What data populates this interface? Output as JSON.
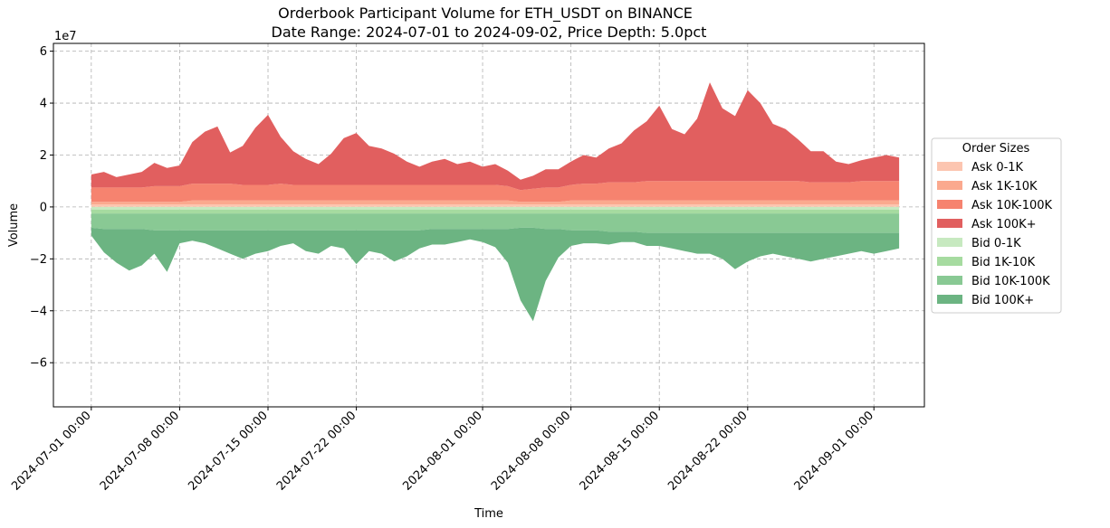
{
  "chart_data": {
    "type": "area",
    "title": "Orderbook Participant Volume for ETH_USDT on BINANCE",
    "subtitle": "Date Range: 2024-07-01 to 2024-09-02, Price Depth: 5.0pct",
    "xlabel": "Time",
    "ylabel": "Volume",
    "y_offset_label": "1e7",
    "x_start": "2024-07-01",
    "x_end": "2024-09-03",
    "x_range": [
      "2024-06-28",
      "2024-09-05"
    ],
    "ylim": [
      -7.7,
      6.3
    ],
    "y_scale_multiplier": 10000000,
    "yticks": [
      -6,
      -4,
      -2,
      0,
      2,
      4,
      6
    ],
    "xtick_dates": [
      "2024-07-01",
      "2024-07-08",
      "2024-07-15",
      "2024-07-22",
      "2024-08-01",
      "2024-08-08",
      "2024-08-15",
      "2024-08-22",
      "2024-09-01"
    ],
    "xtick_labels": [
      "2024-07-01 00:00",
      "2024-07-08 00:00",
      "2024-07-15 00:00",
      "2024-07-22 00:00",
      "2024-08-01 00:00",
      "2024-08-08 00:00",
      "2024-08-15 00:00",
      "2024-08-22 00:00",
      "2024-09-01 00:00"
    ],
    "grid": true,
    "legend_title": "Order Sizes",
    "legend_position": "center right, outside plot",
    "x": [
      "2024-07-01",
      "2024-07-02",
      "2024-07-03",
      "2024-07-04",
      "2024-07-05",
      "2024-07-06",
      "2024-07-07",
      "2024-07-08",
      "2024-07-09",
      "2024-07-10",
      "2024-07-11",
      "2024-07-12",
      "2024-07-13",
      "2024-07-14",
      "2024-07-15",
      "2024-07-16",
      "2024-07-17",
      "2024-07-18",
      "2024-07-19",
      "2024-07-20",
      "2024-07-21",
      "2024-07-22",
      "2024-07-23",
      "2024-07-24",
      "2024-07-25",
      "2024-07-26",
      "2024-07-27",
      "2024-07-28",
      "2024-07-29",
      "2024-07-30",
      "2024-07-31",
      "2024-08-01",
      "2024-08-02",
      "2024-08-03",
      "2024-08-04",
      "2024-08-05",
      "2024-08-06",
      "2024-08-07",
      "2024-08-08",
      "2024-08-09",
      "2024-08-10",
      "2024-08-11",
      "2024-08-12",
      "2024-08-13",
      "2024-08-14",
      "2024-08-15",
      "2024-08-16",
      "2024-08-17",
      "2024-08-18",
      "2024-08-19",
      "2024-08-20",
      "2024-08-21",
      "2024-08-22",
      "2024-08-23",
      "2024-08-24",
      "2024-08-25",
      "2024-08-26",
      "2024-08-27",
      "2024-08-28",
      "2024-08-29",
      "2024-08-30",
      "2024-08-31",
      "2024-09-01",
      "2024-09-02",
      "2024-09-03"
    ],
    "series": [
      {
        "name": "Ask 0-1K",
        "color": "#fcc5b0",
        "values": [
          0.1,
          0.1,
          0.1,
          0.1,
          0.1,
          0.1,
          0.1,
          0.1,
          0.1,
          0.1,
          0.1,
          0.1,
          0.1,
          0.1,
          0.1,
          0.1,
          0.1,
          0.1,
          0.1,
          0.1,
          0.1,
          0.1,
          0.1,
          0.1,
          0.1,
          0.1,
          0.1,
          0.1,
          0.1,
          0.1,
          0.1,
          0.1,
          0.1,
          0.1,
          0.1,
          0.1,
          0.1,
          0.1,
          0.1,
          0.1,
          0.1,
          0.1,
          0.1,
          0.1,
          0.1,
          0.1,
          0.1,
          0.1,
          0.1,
          0.1,
          0.1,
          0.1,
          0.1,
          0.1,
          0.1,
          0.1,
          0.1,
          0.1,
          0.1,
          0.1,
          0.1,
          0.1,
          0.1,
          0.1,
          0.1
        ]
      },
      {
        "name": "Ask 1K-10K",
        "color": "#fba98e",
        "values": [
          0.1,
          0.1,
          0.1,
          0.1,
          0.1,
          0.1,
          0.1,
          0.1,
          0.15,
          0.15,
          0.15,
          0.15,
          0.15,
          0.15,
          0.15,
          0.15,
          0.15,
          0.15,
          0.15,
          0.15,
          0.15,
          0.15,
          0.15,
          0.15,
          0.15,
          0.15,
          0.15,
          0.15,
          0.15,
          0.15,
          0.15,
          0.15,
          0.15,
          0.15,
          0.1,
          0.1,
          0.1,
          0.1,
          0.15,
          0.15,
          0.15,
          0.15,
          0.15,
          0.15,
          0.15,
          0.15,
          0.15,
          0.15,
          0.15,
          0.15,
          0.15,
          0.15,
          0.15,
          0.15,
          0.15,
          0.15,
          0.15,
          0.15,
          0.15,
          0.15,
          0.15,
          0.15,
          0.15,
          0.15,
          0.15
        ]
      },
      {
        "name": "Ask 10K-100K",
        "color": "#f6836f",
        "values": [
          0.55,
          0.55,
          0.55,
          0.55,
          0.55,
          0.6,
          0.6,
          0.6,
          0.65,
          0.65,
          0.65,
          0.65,
          0.6,
          0.6,
          0.6,
          0.65,
          0.6,
          0.6,
          0.6,
          0.6,
          0.6,
          0.6,
          0.6,
          0.6,
          0.6,
          0.6,
          0.6,
          0.6,
          0.6,
          0.6,
          0.6,
          0.6,
          0.6,
          0.55,
          0.45,
          0.5,
          0.55,
          0.55,
          0.6,
          0.65,
          0.65,
          0.7,
          0.7,
          0.7,
          0.75,
          0.75,
          0.75,
          0.75,
          0.75,
          0.75,
          0.75,
          0.75,
          0.75,
          0.75,
          0.75,
          0.75,
          0.75,
          0.7,
          0.7,
          0.7,
          0.7,
          0.75,
          0.75,
          0.75,
          0.75
        ]
      },
      {
        "name": "Ask 100K+",
        "color": "#e15f5f",
        "values": [
          0.5,
          0.6,
          0.4,
          0.5,
          0.6,
          0.9,
          0.7,
          0.8,
          1.6,
          2.0,
          2.2,
          1.2,
          1.5,
          2.2,
          2.7,
          1.8,
          1.3,
          1.0,
          0.8,
          1.2,
          1.8,
          2.0,
          1.5,
          1.4,
          1.2,
          0.9,
          0.7,
          0.9,
          1.0,
          0.8,
          0.9,
          0.7,
          0.8,
          0.6,
          0.4,
          0.5,
          0.7,
          0.7,
          0.9,
          1.1,
          1.0,
          1.3,
          1.5,
          2.0,
          2.3,
          2.9,
          2.0,
          1.8,
          2.4,
          3.8,
          2.8,
          2.5,
          3.5,
          3.0,
          2.2,
          2.0,
          1.6,
          1.2,
          1.2,
          0.8,
          0.7,
          0.8,
          0.9,
          1.0,
          0.9
        ]
      },
      {
        "name": "Bid 0-1K",
        "color": "#c7e9c0",
        "values": [
          -0.1,
          -0.1,
          -0.1,
          -0.1,
          -0.1,
          -0.1,
          -0.1,
          -0.1,
          -0.1,
          -0.1,
          -0.1,
          -0.1,
          -0.1,
          -0.1,
          -0.1,
          -0.1,
          -0.1,
          -0.1,
          -0.1,
          -0.1,
          -0.1,
          -0.1,
          -0.1,
          -0.1,
          -0.1,
          -0.1,
          -0.1,
          -0.1,
          -0.1,
          -0.1,
          -0.1,
          -0.1,
          -0.1,
          -0.1,
          -0.1,
          -0.1,
          -0.1,
          -0.1,
          -0.1,
          -0.1,
          -0.1,
          -0.1,
          -0.1,
          -0.1,
          -0.1,
          -0.1,
          -0.1,
          -0.1,
          -0.1,
          -0.1,
          -0.1,
          -0.1,
          -0.1,
          -0.1,
          -0.1,
          -0.1,
          -0.1,
          -0.1,
          -0.1,
          -0.1,
          -0.1,
          -0.1,
          -0.1,
          -0.1,
          -0.1
        ]
      },
      {
        "name": "Bid 1K-10K",
        "color": "#a6dba0",
        "values": [
          -0.15,
          -0.15,
          -0.15,
          -0.15,
          -0.15,
          -0.15,
          -0.15,
          -0.15,
          -0.15,
          -0.15,
          -0.15,
          -0.15,
          -0.15,
          -0.15,
          -0.15,
          -0.15,
          -0.15,
          -0.15,
          -0.15,
          -0.15,
          -0.15,
          -0.15,
          -0.15,
          -0.15,
          -0.15,
          -0.15,
          -0.15,
          -0.15,
          -0.15,
          -0.15,
          -0.15,
          -0.15,
          -0.15,
          -0.15,
          -0.15,
          -0.15,
          -0.15,
          -0.15,
          -0.15,
          -0.15,
          -0.15,
          -0.15,
          -0.15,
          -0.15,
          -0.15,
          -0.15,
          -0.15,
          -0.15,
          -0.15,
          -0.15,
          -0.15,
          -0.15,
          -0.15,
          -0.15,
          -0.15,
          -0.15,
          -0.15,
          -0.15,
          -0.15,
          -0.15,
          -0.15,
          -0.15,
          -0.15,
          -0.15,
          -0.15
        ]
      },
      {
        "name": "Bid 10K-100K",
        "color": "#89c994",
        "values": [
          -0.55,
          -0.6,
          -0.6,
          -0.6,
          -0.6,
          -0.65,
          -0.65,
          -0.65,
          -0.65,
          -0.65,
          -0.65,
          -0.65,
          -0.65,
          -0.65,
          -0.65,
          -0.65,
          -0.65,
          -0.65,
          -0.65,
          -0.65,
          -0.65,
          -0.65,
          -0.65,
          -0.65,
          -0.65,
          -0.65,
          -0.65,
          -0.6,
          -0.6,
          -0.6,
          -0.6,
          -0.6,
          -0.6,
          -0.6,
          -0.55,
          -0.55,
          -0.6,
          -0.6,
          -0.65,
          -0.65,
          -0.65,
          -0.7,
          -0.7,
          -0.7,
          -0.75,
          -0.75,
          -0.75,
          -0.75,
          -0.75,
          -0.75,
          -0.75,
          -0.75,
          -0.75,
          -0.75,
          -0.75,
          -0.75,
          -0.75,
          -0.75,
          -0.75,
          -0.75,
          -0.75,
          -0.75,
          -0.75,
          -0.75,
          -0.75
        ]
      },
      {
        "name": "Bid 100K+",
        "color": "#6cb482",
        "values": [
          -0.3,
          -0.9,
          -1.3,
          -1.6,
          -1.4,
          -0.9,
          -1.6,
          -0.5,
          -0.4,
          -0.5,
          -0.7,
          -0.9,
          -1.1,
          -0.9,
          -0.8,
          -0.6,
          -0.5,
          -0.8,
          -0.9,
          -0.6,
          -0.7,
          -1.3,
          -0.8,
          -0.9,
          -1.2,
          -1.0,
          -0.7,
          -0.6,
          -0.6,
          -0.5,
          -0.4,
          -0.5,
          -0.7,
          -1.3,
          -2.8,
          -3.6,
          -2.0,
          -1.1,
          -0.6,
          -0.5,
          -0.5,
          -0.5,
          -0.4,
          -0.4,
          -0.5,
          -0.5,
          -0.6,
          -0.7,
          -0.8,
          -0.8,
          -1.0,
          -1.4,
          -1.1,
          -0.9,
          -0.8,
          -0.9,
          -1.0,
          -1.1,
          -1.0,
          -0.9,
          -0.8,
          -0.7,
          -0.8,
          -0.7,
          -0.6
        ]
      }
    ]
  }
}
